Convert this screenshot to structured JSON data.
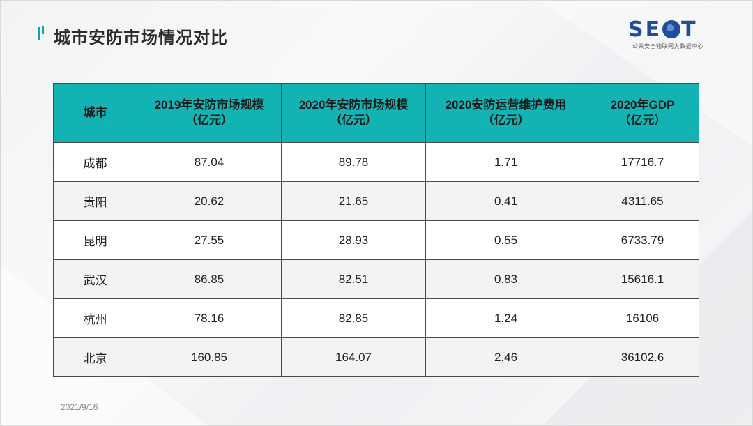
{
  "header": {
    "title": "城市安防市场情况对比"
  },
  "logo": {
    "word_left": "SE",
    "word_right": "T",
    "subtitle": "公共安全物联网大数据中心"
  },
  "table": {
    "columns": [
      {
        "line1": "城市",
        "line2": ""
      },
      {
        "line1": "2019年安防市场规模",
        "line2": "（亿元）"
      },
      {
        "line1": "2020年安防市场规模",
        "line2": "（亿元）"
      },
      {
        "line1": "2020安防运营维护费用",
        "line2": "（亿元）"
      },
      {
        "line1": "2020年GDP",
        "line2": "（亿元）"
      }
    ],
    "rows": [
      [
        "成都",
        "87.04",
        "89.78",
        "1.71",
        "17716.7"
      ],
      [
        "贵阳",
        "20.62",
        "21.65",
        "0.41",
        "4311.65"
      ],
      [
        "昆明",
        "27.55",
        "28.93",
        "0.55",
        "6733.79"
      ],
      [
        "武汉",
        "86.85",
        "82.51",
        "0.83",
        "15616.1"
      ],
      [
        "杭州",
        "78.16",
        "82.85",
        "1.24",
        "16106"
      ],
      [
        "北京",
        "160.85",
        "164.07",
        "2.46",
        "36102.6"
      ]
    ]
  },
  "footer": {
    "date": "2021/9/16"
  },
  "colors": {
    "header_teal": "#13b3b4",
    "title_mark": "#11a6a6",
    "logo_blue": "#1f4e9a"
  }
}
